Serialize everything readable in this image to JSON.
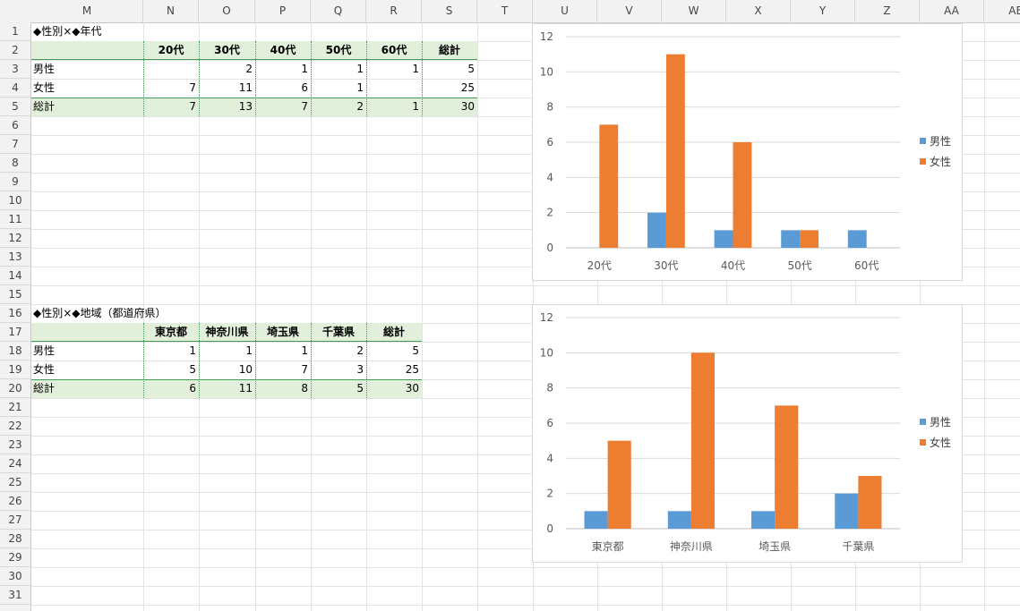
{
  "columns": [
    "M",
    "N",
    "O",
    "P",
    "Q",
    "R",
    "S",
    "T",
    "U",
    "V",
    "W",
    "X",
    "Y",
    "Z",
    "AA",
    "AB"
  ],
  "rows": [
    "1",
    "2",
    "3",
    "4",
    "5",
    "6",
    "7",
    "8",
    "9",
    "10",
    "11",
    "12",
    "13",
    "14",
    "15",
    "16",
    "17",
    "18",
    "19",
    "20",
    "21",
    "22",
    "23",
    "24",
    "25",
    "26",
    "27",
    "28",
    "29",
    "30",
    "31"
  ],
  "table1": {
    "title": "◆性別×◆年代",
    "headers": [
      "",
      "20代",
      "30代",
      "40代",
      "50代",
      "60代",
      "総計"
    ],
    "rows": [
      [
        "男性",
        "",
        "2",
        "1",
        "1",
        "1",
        "5"
      ],
      [
        "女性",
        "7",
        "11",
        "6",
        "1",
        "",
        "25"
      ]
    ],
    "total": [
      "総計",
      "7",
      "13",
      "7",
      "2",
      "1",
      "30"
    ]
  },
  "table2": {
    "title": "◆性別×◆地域（都道府県）",
    "headers": [
      "",
      "東京都",
      "神奈川県",
      "埼玉県",
      "千葉県",
      "総計"
    ],
    "rows": [
      [
        "男性",
        "1",
        "1",
        "1",
        "2",
        "5"
      ],
      [
        "女性",
        "5",
        "10",
        "7",
        "3",
        "25"
      ]
    ],
    "total": [
      "総計",
      "6",
      "11",
      "8",
      "5",
      "30"
    ]
  },
  "chart_data": [
    {
      "type": "bar",
      "categories": [
        "20代",
        "30代",
        "40代",
        "50代",
        "60代"
      ],
      "series": [
        {
          "name": "男性",
          "values": [
            0,
            2,
            1,
            1,
            1
          ],
          "color": "#5b9bd5"
        },
        {
          "name": "女性",
          "values": [
            7,
            11,
            6,
            1,
            0
          ],
          "color": "#ed7d31"
        }
      ],
      "ylim": [
        0,
        12
      ],
      "yticks": [
        "0",
        "2",
        "4",
        "6",
        "8",
        "10",
        "12"
      ],
      "grid": true,
      "legend": "right"
    },
    {
      "type": "bar",
      "categories": [
        "東京都",
        "神奈川県",
        "埼玉県",
        "千葉県"
      ],
      "series": [
        {
          "name": "男性",
          "values": [
            1,
            1,
            1,
            2
          ],
          "color": "#5b9bd5"
        },
        {
          "name": "女性",
          "values": [
            5,
            10,
            7,
            3
          ],
          "color": "#ed7d31"
        }
      ],
      "ylim": [
        0,
        12
      ],
      "yticks": [
        "0",
        "2",
        "4",
        "6",
        "8",
        "10",
        "12"
      ],
      "grid": true,
      "legend": "right"
    }
  ]
}
